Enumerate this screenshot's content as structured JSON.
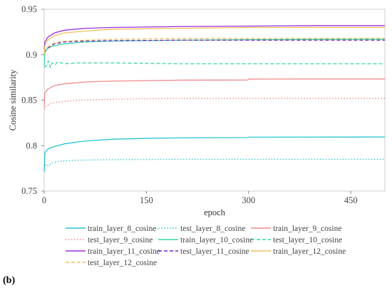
{
  "panel_label": "(b)",
  "chart_data": {
    "type": "line",
    "xlabel": "epoch",
    "ylabel": "Cosine similarity",
    "xlim": [
      0,
      500
    ],
    "ylim": [
      0.75,
      0.95
    ],
    "xticks": [
      0,
      150,
      300,
      450
    ],
    "yticks": [
      0.75,
      0.8,
      0.85,
      0.9,
      0.95
    ],
    "grid": false,
    "legend_position": "bottom",
    "series": [
      {
        "name": "train_layer_8_cosine",
        "color": "#27c4d3",
        "dash": "solid",
        "points": [
          [
            0,
            0.771
          ],
          [
            1,
            0.792
          ],
          [
            5,
            0.796
          ],
          [
            15,
            0.799
          ],
          [
            30,
            0.802
          ],
          [
            60,
            0.805
          ],
          [
            100,
            0.807
          ],
          [
            150,
            0.808
          ],
          [
            200,
            0.8085
          ],
          [
            299,
            0.8088
          ],
          [
            300,
            0.8093
          ],
          [
            400,
            0.8094
          ],
          [
            500,
            0.8095
          ]
        ]
      },
      {
        "name": "test_layer_8_cosine",
        "color": "#27c4d3",
        "dash": "dotted",
        "points": [
          [
            0,
            0.775
          ],
          [
            2,
            0.779
          ],
          [
            6,
            0.778
          ],
          [
            12,
            0.781
          ],
          [
            25,
            0.783
          ],
          [
            50,
            0.784
          ],
          [
            100,
            0.7845
          ],
          [
            200,
            0.785
          ],
          [
            300,
            0.785
          ],
          [
            400,
            0.785
          ],
          [
            500,
            0.785
          ]
        ]
      },
      {
        "name": "train_layer_9_cosine",
        "color": "#f08b8b",
        "dash": "solid",
        "points": [
          [
            0,
            0.842
          ],
          [
            1,
            0.858
          ],
          [
            5,
            0.862
          ],
          [
            15,
            0.866
          ],
          [
            30,
            0.868
          ],
          [
            60,
            0.87
          ],
          [
            100,
            0.871
          ],
          [
            150,
            0.8715
          ],
          [
            200,
            0.872
          ],
          [
            299,
            0.8722
          ],
          [
            300,
            0.8732
          ],
          [
            400,
            0.8733
          ],
          [
            500,
            0.8733
          ]
        ]
      },
      {
        "name": "test_layer_9_cosine",
        "color": "#f08b8b",
        "dash": "dotted",
        "points": [
          [
            0,
            0.84
          ],
          [
            3,
            0.843
          ],
          [
            8,
            0.846
          ],
          [
            20,
            0.848
          ],
          [
            50,
            0.85
          ],
          [
            100,
            0.851
          ],
          [
            200,
            0.852
          ],
          [
            300,
            0.852
          ],
          [
            400,
            0.852
          ],
          [
            500,
            0.852
          ]
        ]
      },
      {
        "name": "train_layer_10_cosine",
        "color": "#33d6a6",
        "dash": "solid",
        "points": [
          [
            0,
            0.888
          ],
          [
            1,
            0.903
          ],
          [
            5,
            0.907
          ],
          [
            15,
            0.91
          ],
          [
            30,
            0.912
          ],
          [
            60,
            0.914
          ],
          [
            100,
            0.915
          ],
          [
            200,
            0.916
          ],
          [
            300,
            0.9165
          ],
          [
            400,
            0.9168
          ],
          [
            500,
            0.917
          ]
        ]
      },
      {
        "name": "test_layer_10_cosine",
        "color": "#33d6a6",
        "dash": "dashed",
        "points": [
          [
            0,
            0.886
          ],
          [
            3,
            0.888
          ],
          [
            6,
            0.893
          ],
          [
            9,
            0.886
          ],
          [
            12,
            0.891
          ],
          [
            16,
            0.889
          ],
          [
            20,
            0.892
          ],
          [
            30,
            0.89
          ],
          [
            50,
            0.891
          ],
          [
            100,
            0.891
          ],
          [
            200,
            0.89
          ],
          [
            300,
            0.89
          ],
          [
            400,
            0.89
          ],
          [
            500,
            0.89
          ]
        ]
      },
      {
        "name": "train_layer_11_cosine",
        "color": "#9b30d9",
        "dash": "solid",
        "points": [
          [
            0,
            0.906
          ],
          [
            1,
            0.914
          ],
          [
            5,
            0.919
          ],
          [
            15,
            0.924
          ],
          [
            30,
            0.927
          ],
          [
            60,
            0.929
          ],
          [
            100,
            0.93
          ],
          [
            200,
            0.931
          ],
          [
            300,
            0.9315
          ],
          [
            400,
            0.932
          ],
          [
            500,
            0.932
          ]
        ]
      },
      {
        "name": "test_layer_11_cosine",
        "color": "#7a22c0",
        "dash": "dashed",
        "points": [
          [
            0,
            0.902
          ],
          [
            3,
            0.906
          ],
          [
            8,
            0.909
          ],
          [
            15,
            0.912
          ],
          [
            30,
            0.914
          ],
          [
            60,
            0.915
          ],
          [
            100,
            0.9155
          ],
          [
            200,
            0.916
          ],
          [
            300,
            0.916
          ],
          [
            400,
            0.916
          ],
          [
            500,
            0.916
          ]
        ]
      },
      {
        "name": "train_layer_12_cosine",
        "color": "#f0c060",
        "dash": "solid",
        "points": [
          [
            0,
            0.9
          ],
          [
            1,
            0.91
          ],
          [
            5,
            0.916
          ],
          [
            15,
            0.921
          ],
          [
            30,
            0.924
          ],
          [
            60,
            0.926
          ],
          [
            100,
            0.928
          ],
          [
            200,
            0.929
          ],
          [
            300,
            0.93
          ],
          [
            400,
            0.93
          ],
          [
            500,
            0.93
          ]
        ]
      },
      {
        "name": "test_layer_12_cosine",
        "color": "#f0c060",
        "dash": "dashed",
        "points": [
          [
            0,
            0.903
          ],
          [
            3,
            0.907
          ],
          [
            8,
            0.91
          ],
          [
            15,
            0.913
          ],
          [
            30,
            0.915
          ],
          [
            60,
            0.916
          ],
          [
            100,
            0.917
          ],
          [
            200,
            0.918
          ],
          [
            300,
            0.918
          ],
          [
            400,
            0.918
          ],
          [
            500,
            0.918
          ]
        ]
      }
    ]
  }
}
